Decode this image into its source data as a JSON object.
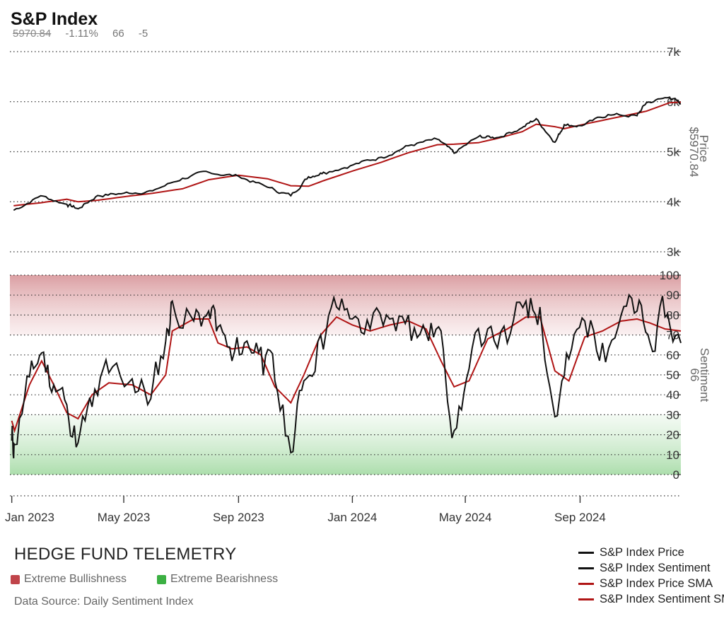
{
  "header": {
    "title": "S&P Index",
    "price": "5970.84",
    "change_pct": "-1.11%",
    "sentiment": "66",
    "sentiment_change": "-5"
  },
  "footer": {
    "brand": "HEDGE FUND TELEMETRY",
    "bullish_label": "Extreme Bullishness",
    "bearish_label": "Extreme Bearishness",
    "source": "Data Source: Daily Sentiment Index"
  },
  "colors": {
    "price": "#111111",
    "sentiment": "#111111",
    "sma": "#b01515",
    "bullish": "#c0444a",
    "bearish": "#3cb043",
    "grid": "#333333"
  },
  "chart_data": [
    {
      "type": "line",
      "title": "S&P Index",
      "ylabel": "Price",
      "ylabel_value": "$5970.84",
      "ylim": [
        3000,
        7000
      ],
      "yticks": [
        "3k",
        "4k",
        "5k",
        "6k",
        "7k"
      ],
      "yticks_values": [
        3000,
        4000,
        5000,
        6000,
        7000
      ],
      "x": [
        "2023-01-03",
        "2023-02-01",
        "2023-03-01",
        "2023-03-13",
        "2023-04-03",
        "2023-05-01",
        "2023-06-01",
        "2023-07-03",
        "2023-07-31",
        "2023-09-01",
        "2023-10-02",
        "2023-10-27",
        "2023-11-15",
        "2023-12-01",
        "2024-01-02",
        "2024-02-01",
        "2024-03-01",
        "2024-04-01",
        "2024-04-19",
        "2024-05-15",
        "2024-06-03",
        "2024-07-01",
        "2024-07-16",
        "2024-08-05",
        "2024-08-15",
        "2024-09-03",
        "2024-10-01",
        "2024-11-01",
        "2024-11-11",
        "2024-12-06",
        "2024-12-18"
      ],
      "series": [
        {
          "name": "S&P Index Price",
          "values": [
            3830,
            4120,
            3950,
            3860,
            4125,
            4170,
            4220,
            4470,
            4590,
            4510,
            4290,
            4120,
            4500,
            4590,
            4740,
            4890,
            5120,
            5250,
            4970,
            5300,
            5280,
            5480,
            5660,
            5190,
            5540,
            5520,
            5740,
            5720,
            5980,
            6090,
            5960
          ]
        },
        {
          "name": "S&P Index Price SMA",
          "values": [
            3920,
            3980,
            4050,
            4000,
            4030,
            4100,
            4170,
            4260,
            4440,
            4530,
            4460,
            4320,
            4310,
            4420,
            4620,
            4790,
            4980,
            5140,
            5150,
            5180,
            5260,
            5400,
            5550,
            5500,
            5460,
            5540,
            5650,
            5770,
            5810,
            5980,
            5990
          ]
        }
      ]
    },
    {
      "type": "line",
      "ylabel": "Sentiment",
      "ylabel_value": "66",
      "ylim": [
        0,
        100
      ],
      "yticks": [
        "0",
        "10",
        "20",
        "30",
        "40",
        "50",
        "60",
        "70",
        "80",
        "90",
        "100"
      ],
      "extreme_bullish_range": [
        70,
        100
      ],
      "extreme_bearish_range": [
        0,
        30
      ],
      "x": [
        "2023-01-01",
        "2023-01-04",
        "2023-01-20",
        "2023-02-02",
        "2023-02-15",
        "2023-03-01",
        "2023-03-13",
        "2023-03-28",
        "2023-04-15",
        "2023-05-10",
        "2023-05-30",
        "2023-06-15",
        "2023-06-22",
        "2023-07-15",
        "2023-07-31",
        "2023-08-10",
        "2023-08-25",
        "2023-09-10",
        "2023-09-25",
        "2023-10-10",
        "2023-10-27",
        "2023-11-10",
        "2023-11-28",
        "2023-12-15",
        "2024-01-01",
        "2024-01-20",
        "2024-02-10",
        "2024-03-01",
        "2024-03-20",
        "2024-04-05",
        "2024-04-19",
        "2024-05-05",
        "2024-05-25",
        "2024-06-15",
        "2024-07-05",
        "2024-07-20",
        "2024-08-05",
        "2024-08-20",
        "2024-09-06",
        "2024-09-25",
        "2024-10-15",
        "2024-11-01",
        "2024-11-15",
        "2024-12-01",
        "2024-12-18"
      ],
      "series": [
        {
          "name": "S&P Index Sentiment",
          "values": [
            17,
            15,
            49,
            61,
            45,
            35,
            16,
            34,
            51,
            48,
            38,
            67,
            87,
            77,
            82,
            74,
            57,
            67,
            64,
            47,
            11,
            47,
            70,
            84,
            78,
            73,
            78,
            80,
            71,
            72,
            22,
            53,
            73,
            66,
            87,
            84,
            29,
            58,
            77,
            66,
            80,
            82,
            66,
            79,
            66
          ]
        },
        {
          "name": "S&P Index Sentiment SMA",
          "values": [
            27,
            22,
            45,
            57,
            45,
            31,
            28,
            40,
            46,
            45,
            40,
            50,
            72,
            78,
            78,
            66,
            63,
            64,
            60,
            44,
            36,
            50,
            70,
            79,
            75,
            72,
            75,
            77,
            73,
            57,
            44,
            47,
            68,
            73,
            79,
            79,
            52,
            47,
            69,
            72,
            77,
            78,
            76,
            73,
            72
          ]
        }
      ]
    }
  ],
  "x_axis": {
    "ticks": [
      "Jan 2023",
      "May 2023",
      "Sep 2023",
      "Jan 2024",
      "May 2024",
      "Sep 2024"
    ],
    "tick_dates": [
      "2023-01-01",
      "2023-05-01",
      "2023-09-01",
      "2024-01-01",
      "2024-05-01",
      "2024-09-01"
    ],
    "range": [
      "2022-12-30",
      "2024-12-18"
    ]
  }
}
